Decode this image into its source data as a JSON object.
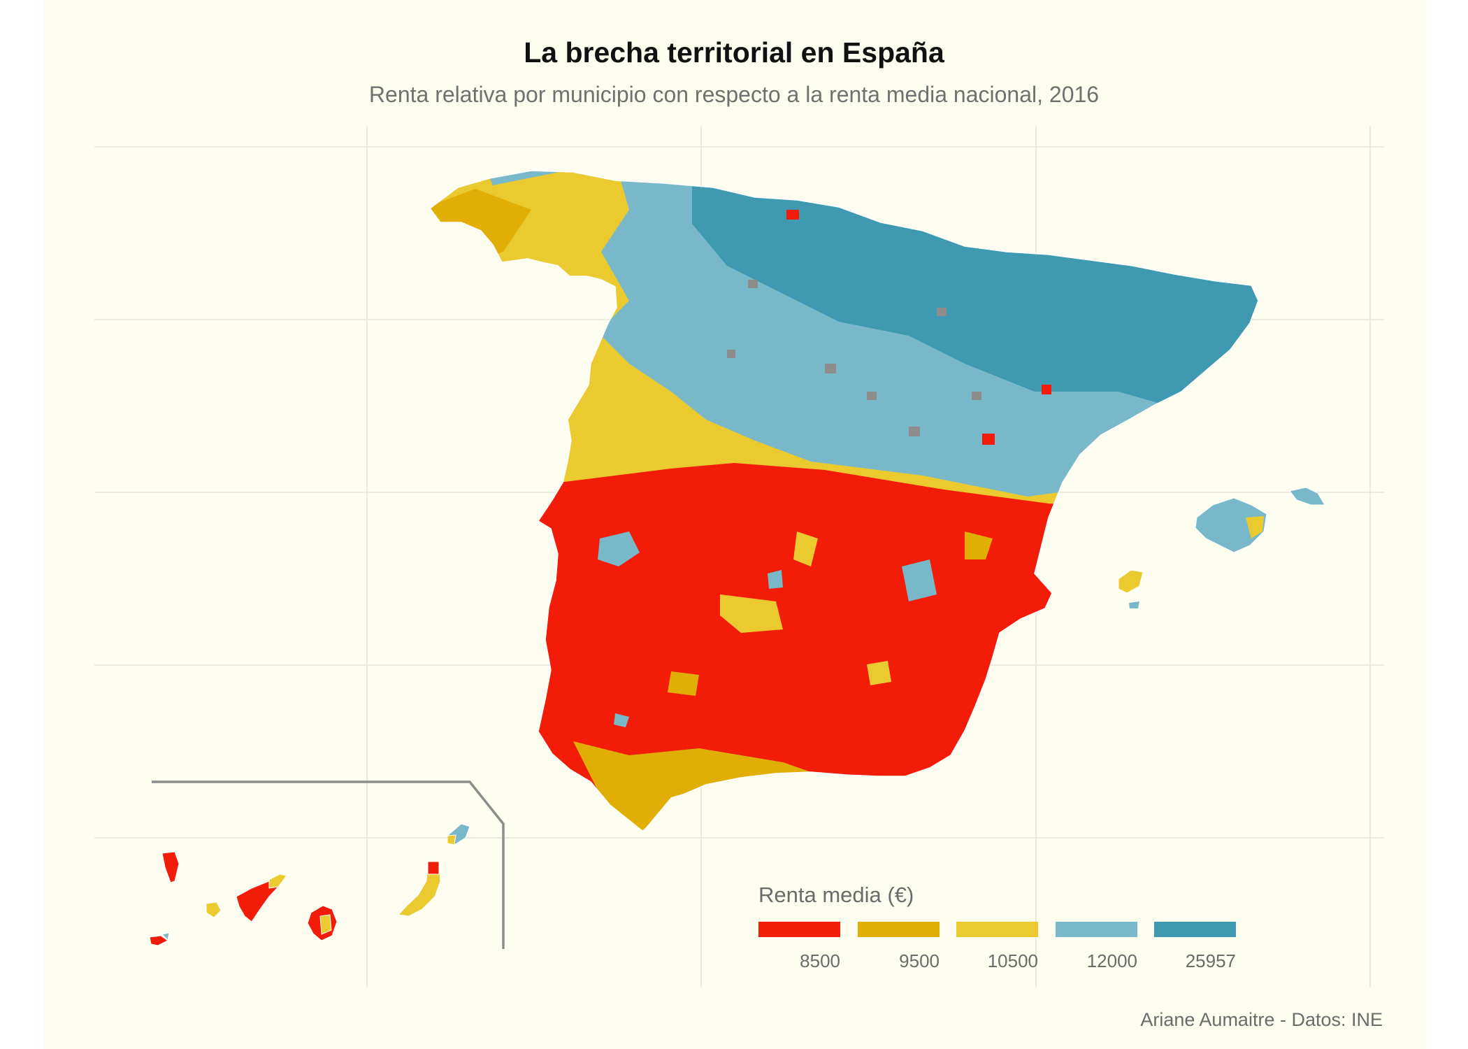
{
  "title": "La brecha territorial en España",
  "subtitle": "Renta relativa por municipio con respecto a la renta media nacional, 2016",
  "caption": "Ariane Aumaitre - Datos: INE",
  "map_data": {
    "type": "choropleth",
    "region": "España (municipios)",
    "variable": "Renta media (€)",
    "year": 2016,
    "legend": {
      "title": "Renta media (€)",
      "placement": "bottom-right",
      "breaks": [
        {
          "label": "8500",
          "color": "#f21c08",
          "band": "lowest"
        },
        {
          "label": "9500",
          "color": "#e0ae05",
          "band": "low"
        },
        {
          "label": "10500",
          "color": "#ebca30",
          "band": "medium"
        },
        {
          "label": "12000",
          "color": "#78b8c9",
          "band": "high"
        },
        {
          "label": "25957",
          "color": "#3e99b1",
          "band": "highest"
        }
      ],
      "missing_color": "#8c8c8c"
    },
    "pattern": "north and northeast mostly high income (blue); south, west and Canarias mostly low income (red/yellow)",
    "inset": "Canarias"
  }
}
